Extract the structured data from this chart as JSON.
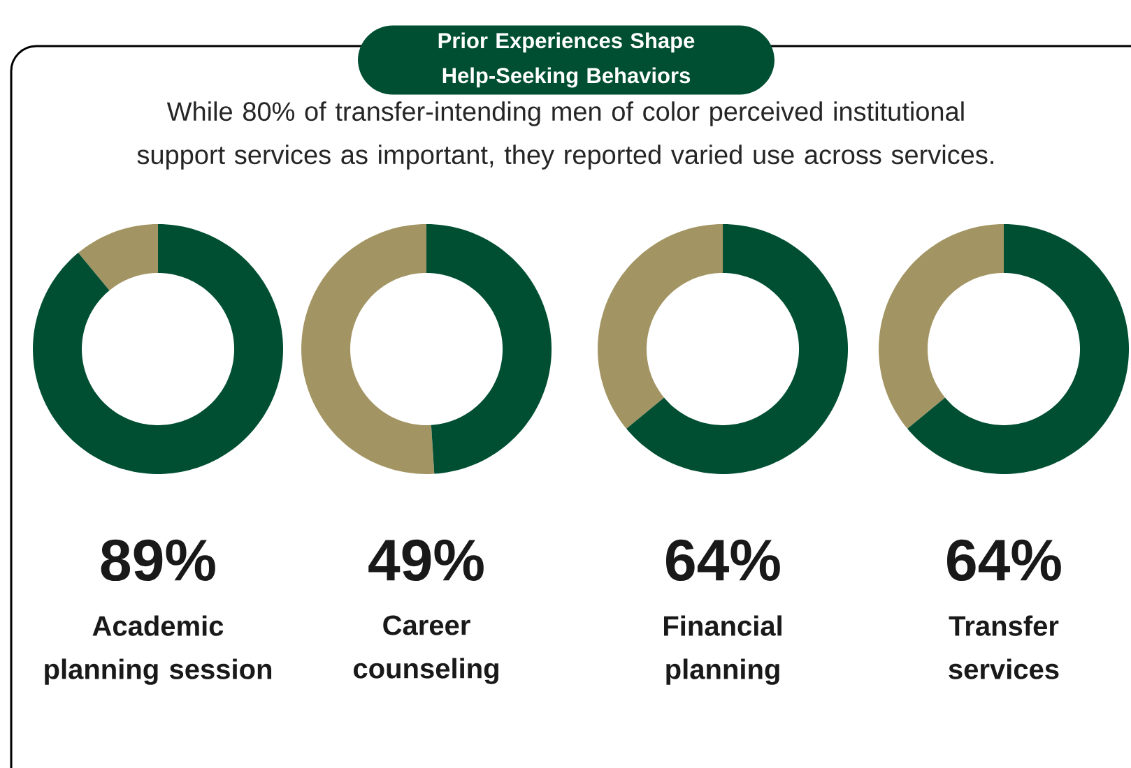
{
  "chart_data": [
    {
      "type": "other",
      "title": "Prior Experiences Shape Help-Seeking Behaviors",
      "subtitle": "While 80% of transfer-intending men of color perceived institutional support services as important, they reported varied use across services."
    },
    {
      "type": "donut",
      "title": "Academic planning session",
      "categories": [
        null,
        null
      ],
      "values": [
        89,
        11
      ],
      "colors": [
        "#004f33",
        "#a39563"
      ],
      "value_labels": [
        "89%",
        null
      ]
    },
    {
      "type": "donut",
      "title": "Career counseling",
      "categories": [
        null,
        null
      ],
      "values": [
        49,
        51
      ],
      "colors": [
        "#004f33",
        "#a39563"
      ],
      "value_labels": [
        "49%",
        null
      ]
    },
    {
      "type": "donut",
      "title": "Financial planning",
      "categories": [
        null,
        null
      ],
      "values": [
        64,
        36
      ],
      "colors": [
        "#004f33",
        "#a39563"
      ],
      "value_labels": [
        "64%",
        null
      ]
    },
    {
      "type": "donut",
      "title": "Transfer services",
      "categories": [
        null,
        null
      ],
      "values": [
        64,
        36
      ],
      "colors": [
        "#004f33",
        "#a39563"
      ],
      "value_labels": [
        "64%",
        null
      ]
    }
  ]
}
